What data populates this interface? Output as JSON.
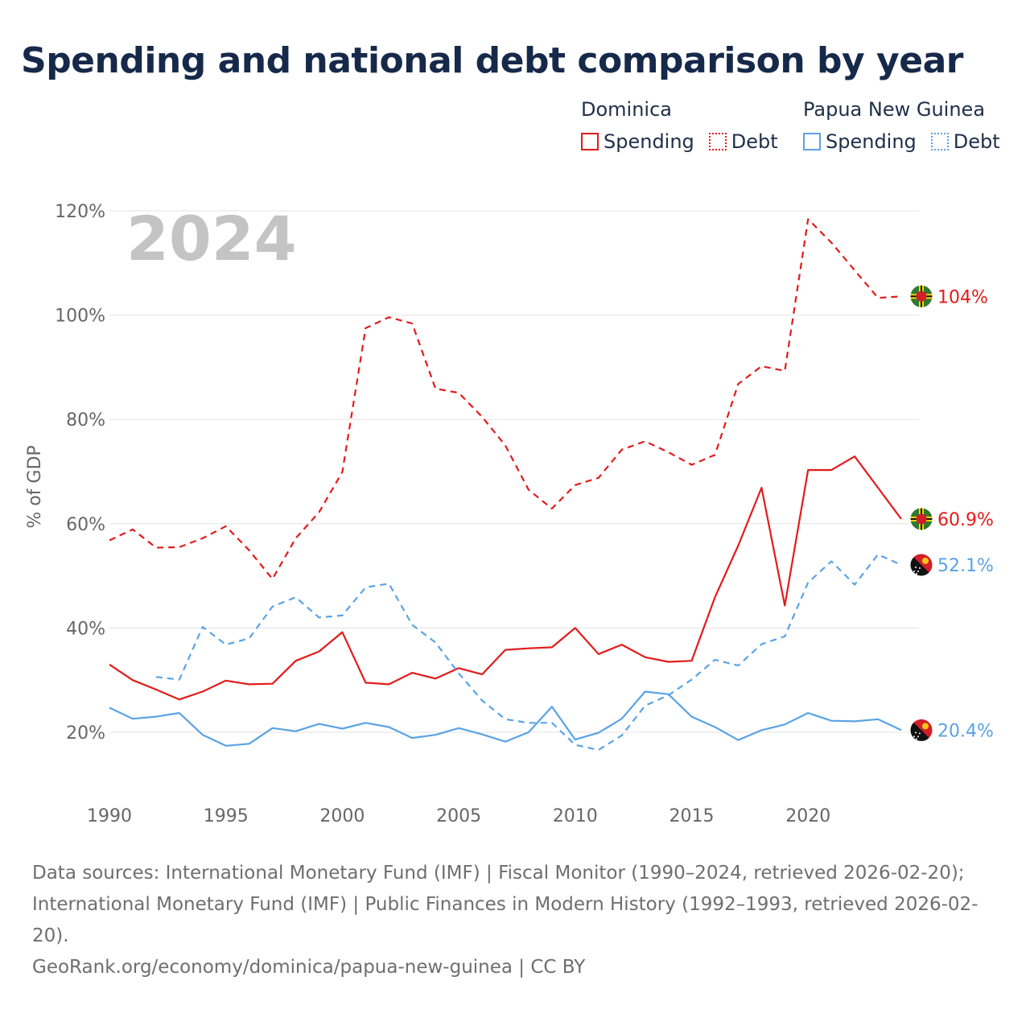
{
  "title": "Spending and national debt comparison by year",
  "legend": {
    "groups": [
      {
        "country": "Dominica",
        "color": "#e31b1b",
        "items": [
          {
            "label": "Spending",
            "style": "solid"
          },
          {
            "label": "Debt",
            "style": "dotted"
          }
        ]
      },
      {
        "country": "Papua New Guinea",
        "color": "#5aa3e6",
        "items": [
          {
            "label": "Spending",
            "style": "solid"
          },
          {
            "label": "Debt",
            "style": "dotted"
          }
        ]
      }
    ]
  },
  "chart_data": {
    "type": "line",
    "year_overlay": "2024",
    "ylabel": "% of GDP",
    "xlabel": "",
    "xlim": [
      1990,
      2024
    ],
    "ylim": [
      10,
      120
    ],
    "x_ticks": [
      1990,
      1995,
      2000,
      2005,
      2010,
      2015,
      2020
    ],
    "y_ticks": [
      {
        "value": 20,
        "label": "20%"
      },
      {
        "value": 40,
        "label": "40%"
      },
      {
        "value": 60,
        "label": "60%"
      },
      {
        "value": 80,
        "label": "80%"
      },
      {
        "value": 100,
        "label": "100%"
      },
      {
        "value": 120,
        "label": "120%"
      }
    ],
    "grid": true,
    "series": [
      {
        "name": "Dominica Debt",
        "country": "Dominica",
        "measure": "Debt",
        "color": "#e31b1b",
        "dashed": true,
        "start_year": 1990,
        "values": [
          56.8,
          58.9,
          55.4,
          55.5,
          57.2,
          59.5,
          54.9,
          49.4,
          57.2,
          62.2,
          69.9,
          97.5,
          99.6,
          98.4,
          85.9,
          85.1,
          80.5,
          75.0,
          66.5,
          62.9,
          67.4,
          68.8,
          74.2,
          75.8,
          73.7,
          71.3,
          73.2,
          86.8,
          90.2,
          89.3,
          118.4,
          113.9,
          108.6,
          103.3,
          103.6
        ],
        "end_label": "104%",
        "flag": "dominica"
      },
      {
        "name": "Dominica Spending",
        "country": "Dominica",
        "measure": "Spending",
        "color": "#e31b1b",
        "dashed": false,
        "start_year": 1990,
        "values": [
          33.0,
          30.0,
          28.2,
          26.3,
          27.8,
          29.9,
          29.2,
          29.3,
          33.7,
          35.5,
          39.2,
          29.5,
          29.2,
          31.4,
          30.3,
          32.3,
          31.1,
          35.8,
          36.1,
          36.3,
          40.0,
          35.0,
          36.8,
          34.4,
          33.5,
          33.7,
          45.9,
          55.8,
          66.9,
          44.3,
          70.3,
          70.3,
          72.9,
          66.9,
          60.9
        ],
        "end_label": "60.9%",
        "flag": "dominica"
      },
      {
        "name": "Papua New Guinea Debt",
        "country": "Papua New Guinea",
        "measure": "Debt",
        "color": "#5aa3e6",
        "dashed": true,
        "start_year": 1992,
        "values": [
          30.6,
          30.1,
          40.2,
          36.8,
          38.0,
          44.1,
          45.9,
          42.0,
          42.4,
          47.8,
          48.5,
          40.6,
          37.2,
          31.3,
          26.1,
          22.5,
          21.8,
          21.8,
          17.6,
          16.6,
          19.4,
          25.1,
          27.1,
          30.1,
          33.9,
          32.8,
          36.9,
          38.4,
          48.7,
          52.8,
          48.3,
          54.1,
          52.1
        ],
        "end_label": "52.1%",
        "flag": "png"
      },
      {
        "name": "Papua New Guinea Spending",
        "country": "Papua New Guinea",
        "measure": "Spending",
        "color": "#5aa3e6",
        "dashed": false,
        "start_year": 1990,
        "values": [
          24.7,
          22.6,
          23.0,
          23.7,
          19.5,
          17.4,
          17.8,
          20.8,
          20.2,
          21.6,
          20.7,
          21.8,
          21.0,
          18.9,
          19.5,
          20.8,
          19.6,
          18.2,
          20.0,
          24.9,
          18.6,
          19.9,
          22.6,
          27.8,
          27.3,
          23.0,
          21.0,
          18.5,
          20.4,
          21.5,
          23.7,
          22.2,
          22.1,
          22.5,
          20.4
        ],
        "end_label": "20.4%",
        "flag": "png"
      }
    ]
  },
  "footer": {
    "sources": "Data sources: International Monetary Fund (IMF) | Fiscal Monitor (1990–2024, retrieved 2026-02-20); International Monetary Fund (IMF) | Public Finances in Modern History (1992–1993, retrieved 2026-02-20).",
    "credit": "GeoRank.org/economy/dominica/papua-new-guinea | CC BY"
  }
}
